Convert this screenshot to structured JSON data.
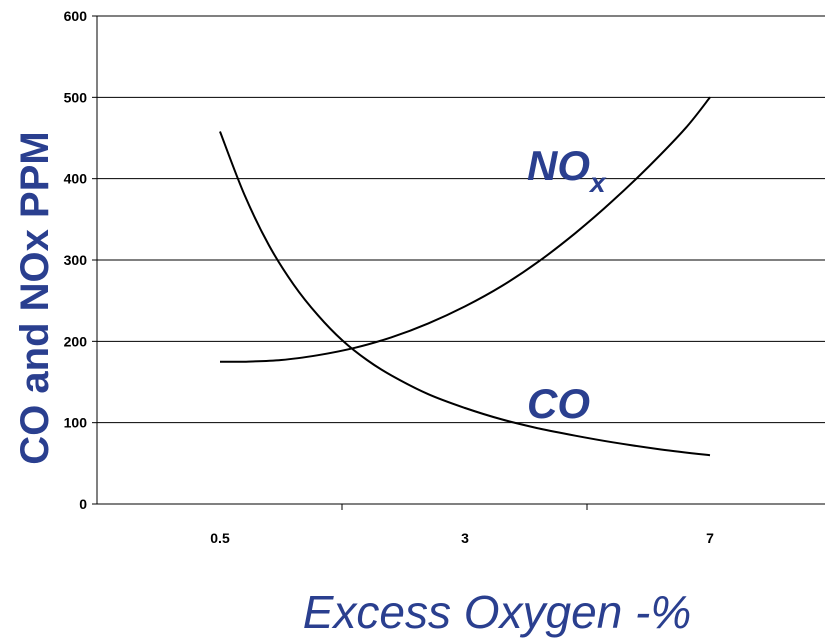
{
  "chart_data": {
    "type": "line",
    "ylabel": "CO and NOx PPM",
    "xlabel": "Excess Oxygen -%",
    "ylim": [
      0,
      600
    ],
    "yticks": [
      0,
      100,
      200,
      300,
      400,
      500,
      600
    ],
    "x_tick_labels": [
      "0.5",
      "3",
      "7"
    ],
    "grid": true,
    "label_color": "#2a3f8f",
    "series": [
      {
        "name": "NOx",
        "label_main": "NO",
        "label_sub": "x",
        "x": [
          0,
          0.1,
          0.25,
          0.4,
          0.55,
          0.7,
          0.85,
          1.0,
          1.15,
          1.3,
          1.45,
          1.6,
          1.75,
          1.9,
          2.0
        ],
        "values": [
          175,
          175,
          177,
          183,
          192,
          205,
          222,
          243,
          268,
          298,
          333,
          372,
          415,
          462,
          500
        ]
      },
      {
        "name": "CO",
        "label_main": "CO",
        "x": [
          0,
          0.1,
          0.2,
          0.3,
          0.4,
          0.5,
          0.6,
          0.7,
          0.85,
          1.0,
          1.15,
          1.3,
          1.45,
          1.6,
          1.8,
          2.0
        ],
        "values": [
          458,
          380,
          318,
          270,
          232,
          201,
          177,
          158,
          135,
          118,
          104,
          93,
          84,
          76,
          67,
          60
        ]
      }
    ]
  }
}
